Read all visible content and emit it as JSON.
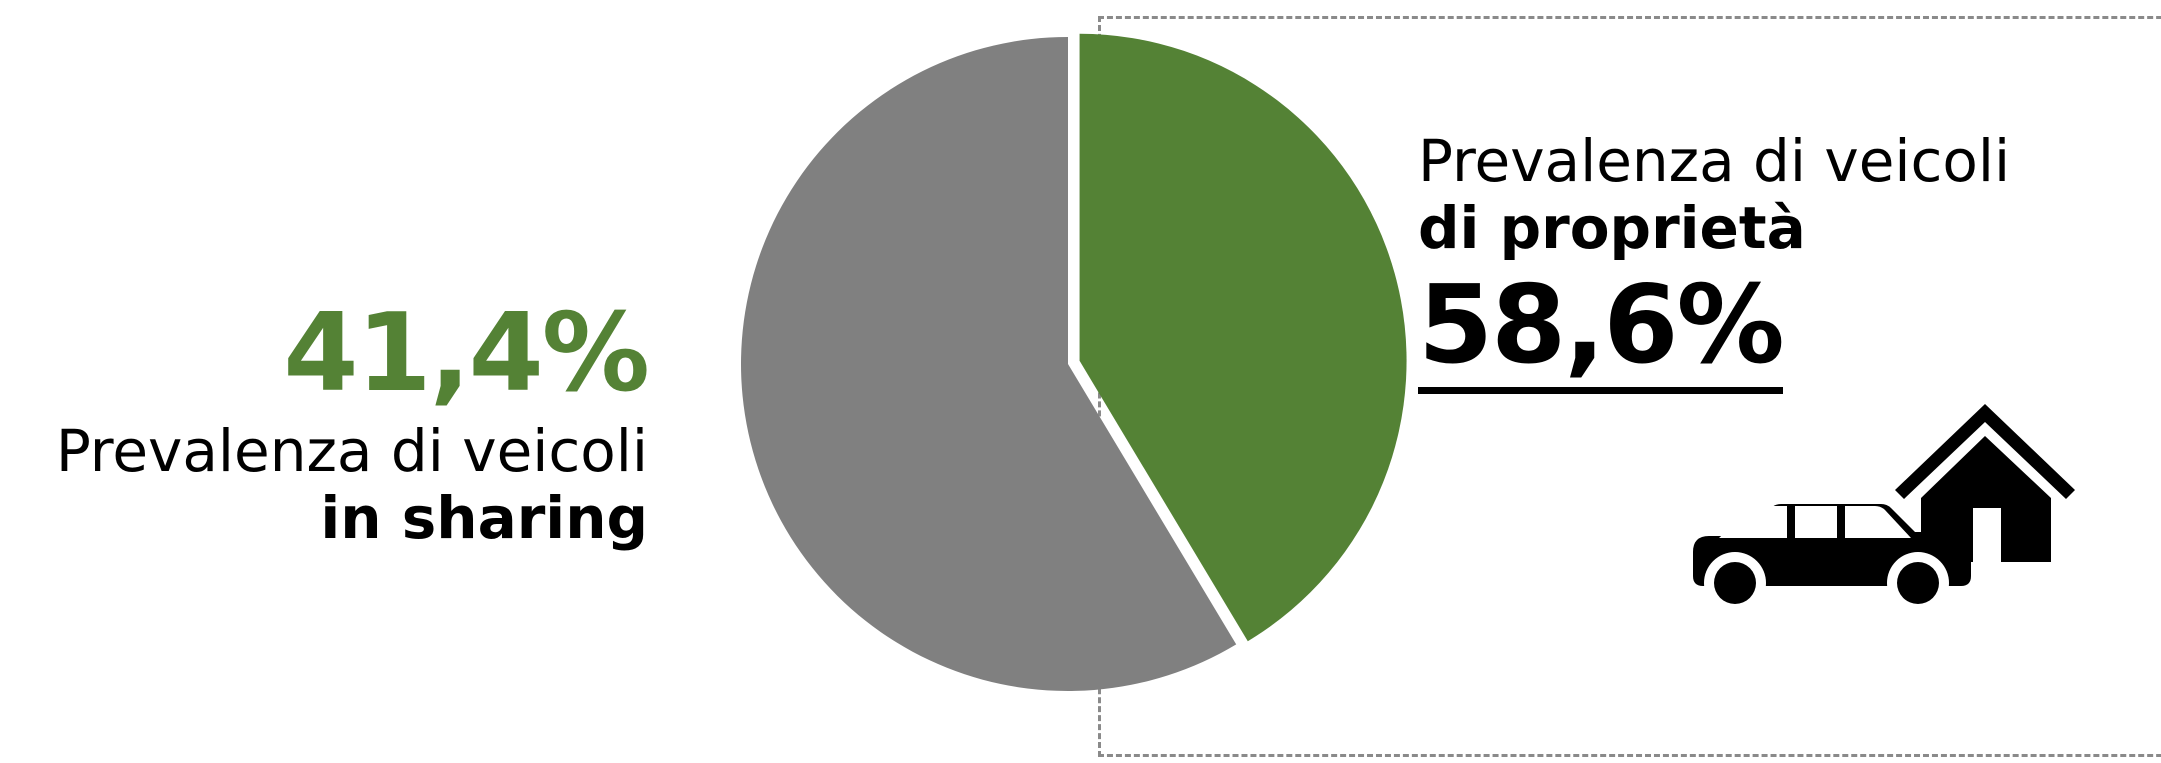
{
  "chart_data": {
    "type": "pie",
    "title": "",
    "slices": [
      {
        "label_line1": "Prevalenza di veicoli",
        "label_line2": "in sharing",
        "value": 41.4,
        "value_label": "41,4%",
        "color": "#548235"
      },
      {
        "label_line1": "Prevalenza di  veicoli",
        "label_line2": "di proprietà",
        "value": 58.6,
        "value_label": "58,6%",
        "color": "#808080"
      }
    ],
    "start_angle_deg": 0,
    "direction": "clockwise",
    "legend": "none"
  },
  "icons": {
    "car": "car-icon",
    "house": "house-icon"
  }
}
